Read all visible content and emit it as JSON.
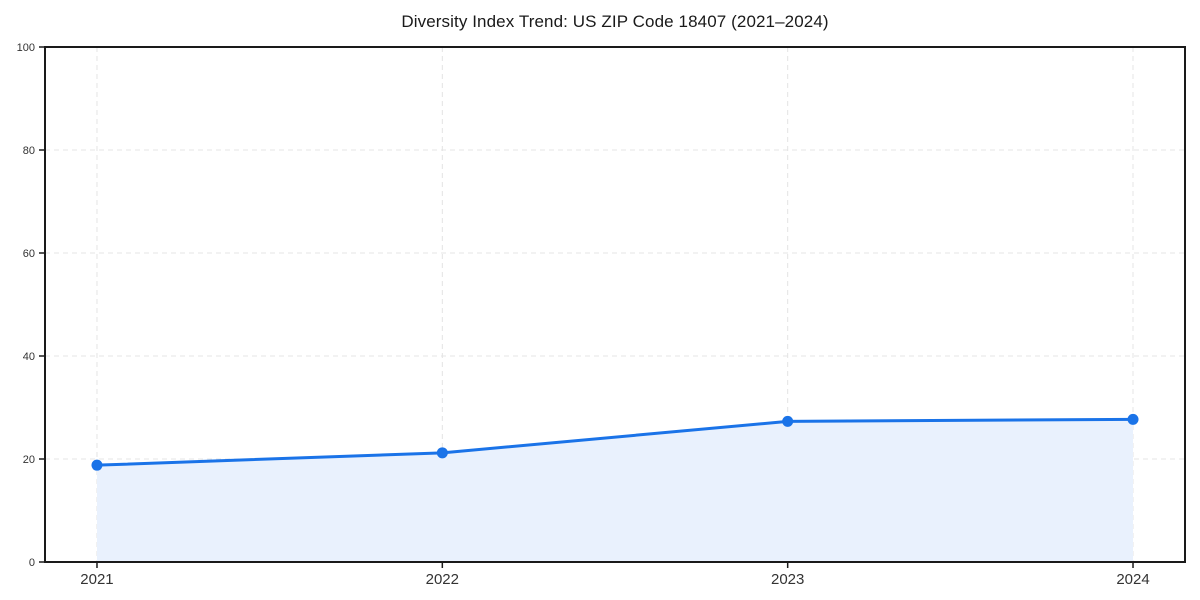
{
  "page": {
    "background_color": "#ffffff"
  },
  "chart_data": {
    "type": "line",
    "title": "Diversity Index Trend: US ZIP Code 18407 (2021–2024)",
    "categories": [
      "2021",
      "2022",
      "2023",
      "2024"
    ],
    "series": [
      {
        "name": "diversity-index",
        "values": [
          18.8,
          21.2,
          27.3,
          27.7
        ]
      }
    ],
    "xlabel": "",
    "ylabel": "",
    "ylim": [
      0,
      100
    ],
    "yticks": [
      0,
      20,
      40,
      60,
      80,
      100
    ],
    "grid": true,
    "grid_style": "dashed",
    "legend_position": "none",
    "marker": "circle",
    "area_fill": true,
    "colors": {
      "line": "#1a73e8",
      "marker": "#1a73e8",
      "area": "#e9f1fd",
      "grid": "#e4e4e4",
      "spine": "#1a1a1a",
      "tick": "#1a1a1a",
      "title_text": "#1a1a1a",
      "tick_text": "#333333"
    }
  }
}
